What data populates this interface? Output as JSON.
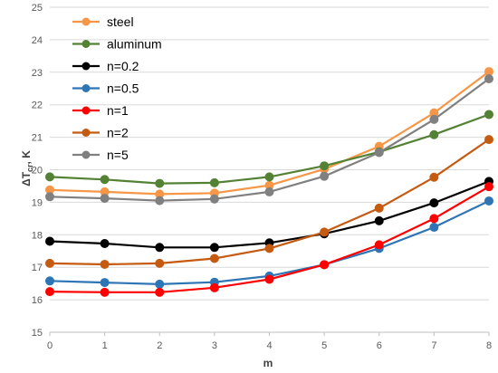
{
  "chart_data": {
    "type": "line",
    "xlabel": "m",
    "ylabel_main": "ΔT",
    "ylabel_sub": "cr",
    "ylabel_unit": ", K",
    "x": [
      0,
      1,
      2,
      3,
      4,
      5,
      6,
      7,
      8
    ],
    "xlim": [
      0,
      8
    ],
    "ylim": [
      15,
      25
    ],
    "x_ticks": [
      "0",
      "1",
      "2",
      "3",
      "4",
      "5",
      "6",
      "7",
      "8"
    ],
    "y_ticks": [
      "15",
      "16",
      "17",
      "18",
      "19",
      "20",
      "21",
      "22",
      "23",
      "24",
      "25"
    ],
    "grid": "horizontal",
    "legend_position": "top-left",
    "series": [
      {
        "name": "steel",
        "color": "#f79646",
        "values": [
          19.38,
          19.32,
          19.25,
          19.28,
          19.52,
          20.02,
          20.72,
          21.75,
          23.02
        ]
      },
      {
        "name": "aluminum",
        "color": "#548235",
        "values": [
          19.78,
          19.7,
          19.58,
          19.6,
          19.78,
          20.12,
          20.55,
          21.08,
          21.7
        ]
      },
      {
        "name": "n=0.2",
        "color": "#000000",
        "values": [
          17.8,
          17.73,
          17.61,
          17.61,
          17.75,
          18.03,
          18.43,
          18.98,
          19.64
        ]
      },
      {
        "name": "n=0.5",
        "color": "#2e75b6",
        "values": [
          16.58,
          16.53,
          16.48,
          16.54,
          16.73,
          17.08,
          17.58,
          18.23,
          19.04
        ]
      },
      {
        "name": "n=1",
        "color": "#ff0000",
        "values": [
          16.25,
          16.23,
          16.23,
          16.37,
          16.63,
          17.08,
          17.69,
          18.5,
          19.48
        ]
      },
      {
        "name": "n=2",
        "color": "#c55a11",
        "values": [
          17.12,
          17.09,
          17.12,
          17.27,
          17.58,
          18.08,
          18.82,
          19.77,
          20.93
        ]
      },
      {
        "name": "n=5",
        "color": "#808080",
        "values": [
          19.17,
          19.12,
          19.05,
          19.1,
          19.32,
          19.8,
          20.53,
          21.55,
          22.8
        ]
      }
    ]
  }
}
